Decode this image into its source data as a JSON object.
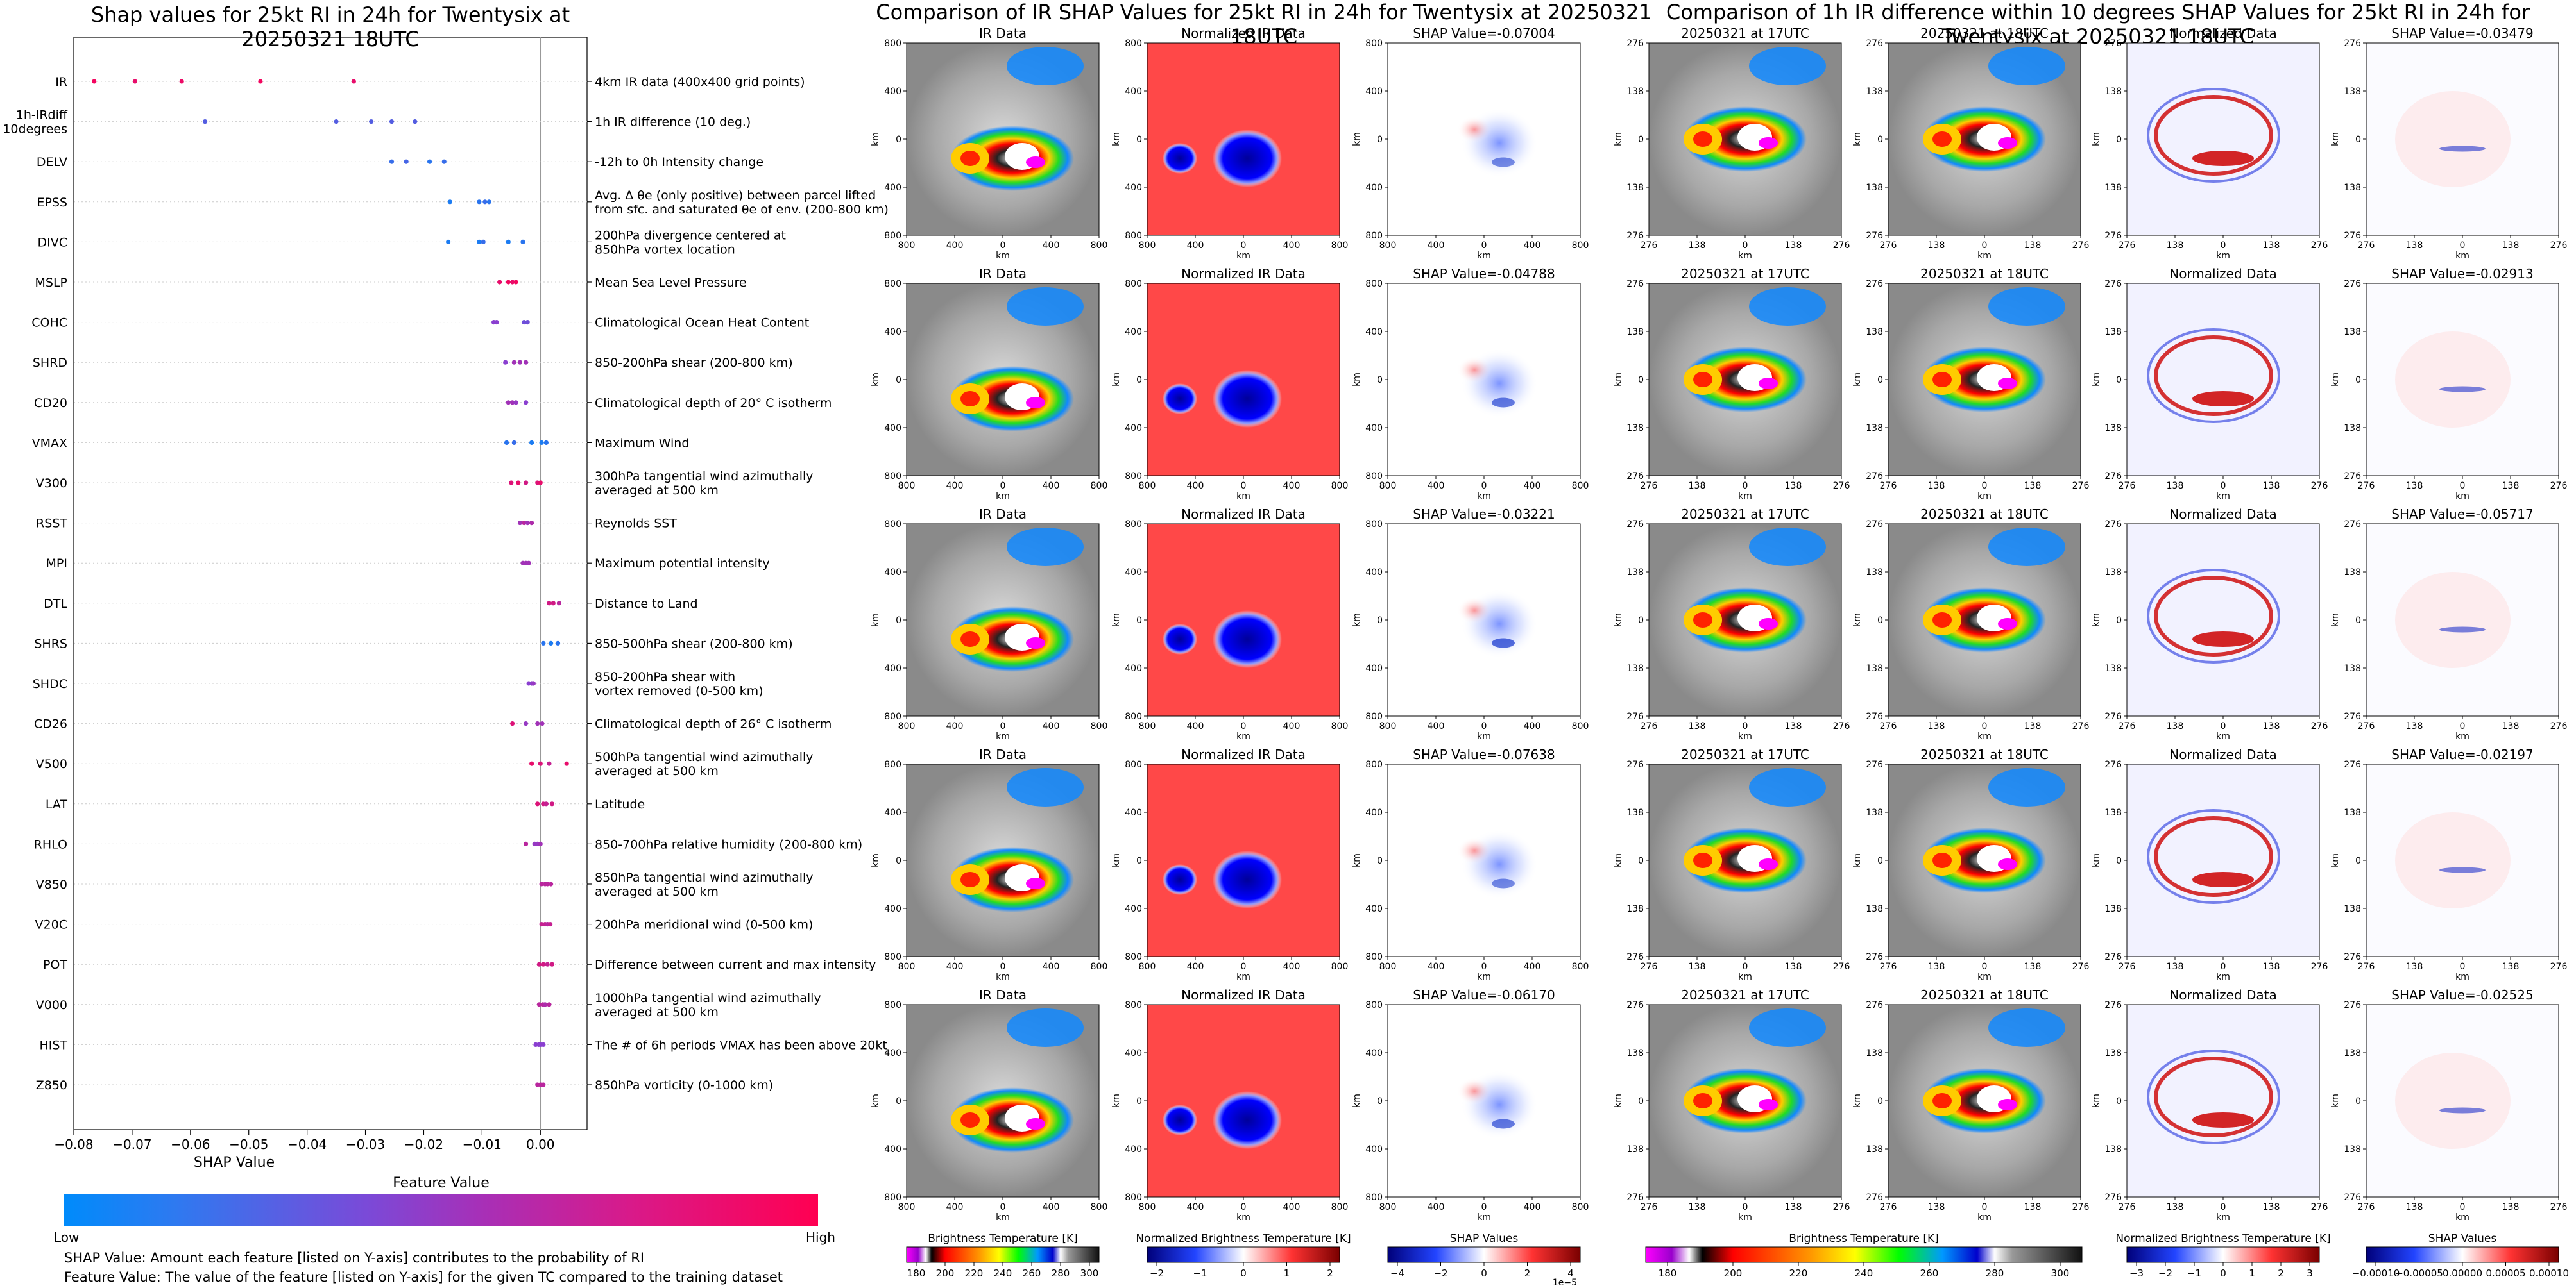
{
  "chart_data": [
    {
      "type": "scatter",
      "title": "Shap values for 25kt RI in 24h for Twentysix at 20250321 18UTC",
      "xlabel": "SHAP Value",
      "xlim": [
        -0.08,
        0.008
      ],
      "xticks": [
        "−0.08",
        "−0.07",
        "−0.06",
        "−0.05",
        "−0.04",
        "−0.03",
        "−0.02",
        "−0.01",
        "0.00"
      ],
      "xtick_values": [
        -0.08,
        -0.07,
        -0.06,
        -0.05,
        -0.04,
        -0.03,
        -0.02,
        -0.01,
        0.0
      ],
      "grid": false,
      "colorbar": {
        "title": "Feature Value",
        "low": "Low",
        "high": "High",
        "low_color": "#008bfb",
        "high_color": "#ff0052"
      },
      "notes": [
        "SHAP Value: Amount each feature [listed on Y-axis] contributes to the probability of RI",
        "Feature Value: The value of the feature [listed on Y-axis] for the given TC compared to the training dataset"
      ],
      "features": [
        {
          "name": "IR",
          "desc": "4km IR data (400x400 grid points)",
          "points": [
            [
              -0.0765,
              0.95
            ],
            [
              -0.0695,
              0.9
            ],
            [
              -0.0615,
              0.92
            ],
            [
              -0.048,
              0.95
            ],
            [
              -0.032,
              0.9
            ]
          ]
        },
        {
          "name": "1h-IRdiff\n10degrees",
          "desc": "1h IR difference (10 deg.)",
          "points": [
            [
              -0.0575,
              0.3
            ],
            [
              -0.035,
              0.3
            ],
            [
              -0.029,
              0.3
            ],
            [
              -0.0255,
              0.3
            ],
            [
              -0.0215,
              0.3
            ]
          ]
        },
        {
          "name": "DELV",
          "desc": "-12h to 0h Intensity change",
          "points": [
            [
              -0.0255,
              0.2
            ],
            [
              -0.023,
              0.25
            ],
            [
              -0.019,
              0.15
            ],
            [
              -0.0165,
              0.2
            ]
          ]
        },
        {
          "name": "EPSS",
          "desc": "Avg. Δ θe (only positive) between parcel lifted\nfrom sfc. and saturated θe of env. (200-800 km)",
          "points": [
            [
              -0.0155,
              0.1
            ],
            [
              -0.0105,
              0.15
            ],
            [
              -0.0095,
              0.2
            ],
            [
              -0.0088,
              0.15
            ]
          ]
        },
        {
          "name": "DIVC",
          "desc": "200hPa divergence centered at\n850hPa vortex location",
          "points": [
            [
              -0.0158,
              0.1
            ],
            [
              -0.0105,
              0.1
            ],
            [
              -0.0098,
              0.2
            ],
            [
              -0.0055,
              0.1
            ],
            [
              -0.003,
              0.15
            ]
          ]
        },
        {
          "name": "MSLP",
          "desc": "Mean Sea Level Pressure",
          "points": [
            [
              -0.007,
              0.9
            ],
            [
              -0.0055,
              0.95
            ],
            [
              -0.0048,
              0.9
            ],
            [
              -0.0042,
              0.95
            ]
          ]
        },
        {
          "name": "COHC",
          "desc": "Climatological Ocean Heat Content",
          "points": [
            [
              -0.008,
              0.5
            ],
            [
              -0.0075,
              0.5
            ],
            [
              -0.0028,
              0.4
            ],
            [
              -0.0022,
              0.4
            ]
          ]
        },
        {
          "name": "SHRD",
          "desc": "850-200hPa shear (200-800 km)",
          "points": [
            [
              -0.006,
              0.5
            ],
            [
              -0.0045,
              0.6
            ],
            [
              -0.0035,
              0.6
            ],
            [
              -0.0025,
              0.6
            ]
          ]
        },
        {
          "name": "CD20",
          "desc": "Climatological depth of 20° C isotherm",
          "points": [
            [
              -0.0055,
              0.6
            ],
            [
              -0.0048,
              0.6
            ],
            [
              -0.0042,
              0.55
            ],
            [
              -0.0025,
              0.5
            ]
          ]
        },
        {
          "name": "VMAX",
          "desc": "Maximum Wind",
          "points": [
            [
              -0.0058,
              0.15
            ],
            [
              -0.0045,
              0.2
            ],
            [
              -0.0015,
              0.1
            ],
            [
              0.0002,
              0.1
            ],
            [
              0.001,
              0.15
            ]
          ]
        },
        {
          "name": "V300",
          "desc": "300hPa tangential wind azimuthally\naveraged at 500 km",
          "points": [
            [
              -0.005,
              0.85
            ],
            [
              -0.0038,
              0.9
            ],
            [
              -0.0025,
              0.8
            ],
            [
              -0.0005,
              0.85
            ],
            [
              0.0,
              0.9
            ]
          ]
        },
        {
          "name": "RSST",
          "desc": "Reynolds SST",
          "points": [
            [
              -0.0035,
              0.6
            ],
            [
              -0.0028,
              0.7
            ],
            [
              -0.0022,
              0.6
            ],
            [
              -0.0015,
              0.65
            ]
          ]
        },
        {
          "name": "MPI",
          "desc": "Maximum potential intensity",
          "points": [
            [
              -0.003,
              0.6
            ],
            [
              -0.0025,
              0.6
            ],
            [
              -0.002,
              0.6
            ]
          ]
        },
        {
          "name": "DTL",
          "desc": "Distance to Land",
          "points": [
            [
              0.0015,
              0.8
            ],
            [
              0.0022,
              0.8
            ],
            [
              0.0032,
              0.7
            ]
          ]
        },
        {
          "name": "SHRS",
          "desc": "850-500hPa shear (200-800 km)",
          "points": [
            [
              0.0005,
              0.15
            ],
            [
              0.0018,
              0.1
            ],
            [
              0.003,
              0.15
            ]
          ]
        },
        {
          "name": "SHDC",
          "desc": "850-200hPa shear with\nvortex removed (0-500 km)",
          "points": [
            [
              -0.002,
              0.5
            ],
            [
              -0.0015,
              0.5
            ],
            [
              -0.0012,
              0.55
            ]
          ]
        },
        {
          "name": "CD26",
          "desc": "Climatological depth of 26° C isotherm",
          "points": [
            [
              -0.0048,
              0.85
            ],
            [
              -0.0025,
              0.55
            ],
            [
              -0.0005,
              0.6
            ],
            [
              0.0003,
              0.6
            ]
          ]
        },
        {
          "name": "V500",
          "desc": "500hPa tangential wind azimuthally\naveraged at 500 km",
          "points": [
            [
              -0.0015,
              0.9
            ],
            [
              0.0,
              0.85
            ],
            [
              0.0015,
              0.75
            ],
            [
              0.0045,
              0.9
            ]
          ]
        },
        {
          "name": "LAT",
          "desc": "Latitude",
          "points": [
            [
              -0.0005,
              0.85
            ],
            [
              0.0005,
              0.8
            ],
            [
              0.001,
              0.75
            ],
            [
              0.002,
              0.8
            ]
          ]
        },
        {
          "name": "RHLO",
          "desc": "850-700hPa relative humidity (200-800 km)",
          "points": [
            [
              -0.0025,
              0.7
            ],
            [
              -0.001,
              0.55
            ],
            [
              -0.0005,
              0.55
            ],
            [
              0.0,
              0.6
            ]
          ]
        },
        {
          "name": "V850",
          "desc": "850hPa tangential wind azimuthally\naveraged at 500 km",
          "points": [
            [
              0.0002,
              0.7
            ],
            [
              0.0008,
              0.7
            ],
            [
              0.0012,
              0.7
            ],
            [
              0.0018,
              0.7
            ]
          ]
        },
        {
          "name": "V20C",
          "desc": "200hPa meridional wind (0-500 km)",
          "points": [
            [
              0.0002,
              0.75
            ],
            [
              0.0008,
              0.75
            ],
            [
              0.0012,
              0.7
            ],
            [
              0.0017,
              0.75
            ]
          ]
        },
        {
          "name": "POT",
          "desc": "Difference between current and max intensity",
          "points": [
            [
              -0.0002,
              0.8
            ],
            [
              0.0005,
              0.8
            ],
            [
              0.0012,
              0.75
            ],
            [
              0.002,
              0.8
            ]
          ]
        },
        {
          "name": "V000",
          "desc": "1000hPa tangential wind azimuthally\naveraged at 500 km",
          "points": [
            [
              -0.0002,
              0.7
            ],
            [
              0.0004,
              0.7
            ],
            [
              0.0008,
              0.65
            ],
            [
              0.0015,
              0.7
            ]
          ]
        },
        {
          "name": "HIST",
          "desc": "The # of 6h periods VMAX has been above 20kt",
          "points": [
            [
              -0.0008,
              0.5
            ],
            [
              -0.0003,
              0.5
            ],
            [
              0.0,
              0.5
            ],
            [
              0.0005,
              0.5
            ]
          ]
        },
        {
          "name": "Z850",
          "desc": "850hPa vorticity (0-1000 km)",
          "points": [
            [
              -0.0005,
              0.7
            ],
            [
              0.0,
              0.7
            ],
            [
              0.0005,
              0.7
            ]
          ]
        }
      ]
    },
    {
      "type": "heatmap",
      "title": "Comparison of IR SHAP Values for 25kt RI in 24h for Twentysix at 20250321 18UTC",
      "column_titles": [
        "IR Data",
        "Normalized IR Data"
      ],
      "shap_titles": [
        "SHAP Value=-0.07004",
        "SHAP Value=-0.04788",
        "SHAP Value=-0.03221",
        "SHAP Value=-0.07638",
        "SHAP Value=-0.06170"
      ],
      "shap_values": [
        -0.07004,
        -0.04788,
        -0.03221,
        -0.07638,
        -0.0617
      ],
      "axis_label": "km",
      "yticks": [
        "800",
        "400",
        "0",
        "400",
        "800"
      ],
      "xticks": [
        "800",
        "400",
        "0",
        "400",
        "800"
      ],
      "colorbars": [
        {
          "label": "Brightness Temperature [K]",
          "ticks": [
            "180",
            "200",
            "220",
            "240",
            "260",
            "280",
            "300"
          ]
        },
        {
          "label": "Normalized Brightness Temperature [K]",
          "ticks": [
            "−2",
            "−1",
            "0",
            "1",
            "2"
          ]
        },
        {
          "label": "SHAP Values",
          "ticks": [
            "−4",
            "−2",
            "0",
            "2",
            "4"
          ],
          "exponent": "1e−5"
        }
      ]
    },
    {
      "type": "heatmap",
      "title": "Comparison of 1h IR difference within 10 degrees SHAP Values for 25kt RI in 24h for Twentysix at 20250321 18UTC",
      "column_titles": [
        "20250321 at 17UTC",
        "20250321 at 18UTC",
        "Normalized Data"
      ],
      "shap_titles": [
        "SHAP Value=-0.03479",
        "SHAP Value=-0.02913",
        "SHAP Value=-0.05717",
        "SHAP Value=-0.02197",
        "SHAP Value=-0.02525"
      ],
      "shap_values": [
        -0.03479,
        -0.02913,
        -0.05717,
        -0.02197,
        -0.02525
      ],
      "axis_label": "km",
      "yticks": [
        "276",
        "138",
        "0",
        "138",
        "276"
      ],
      "xticks": [
        "276",
        "138",
        "0",
        "138",
        "276"
      ],
      "colorbars": [
        {
          "label": "Brightness Temperature [K]",
          "ticks": [
            "180",
            "200",
            "220",
            "240",
            "260",
            "280",
            "300"
          ]
        },
        {
          "label": "Normalized Brightness Temperature [K]",
          "ticks": [
            "−3",
            "−2",
            "−1",
            "0",
            "1",
            "2",
            "3"
          ]
        },
        {
          "label": "SHAP Values",
          "ticks": [
            "−0.00010",
            "−0.00005",
            "0.00000",
            "0.00005",
            "0.00010"
          ]
        }
      ]
    }
  ],
  "colors": {
    "shap_low": "#008bfb",
    "shap_mid": "#8a3fd0",
    "shap_high": "#ff0052"
  }
}
